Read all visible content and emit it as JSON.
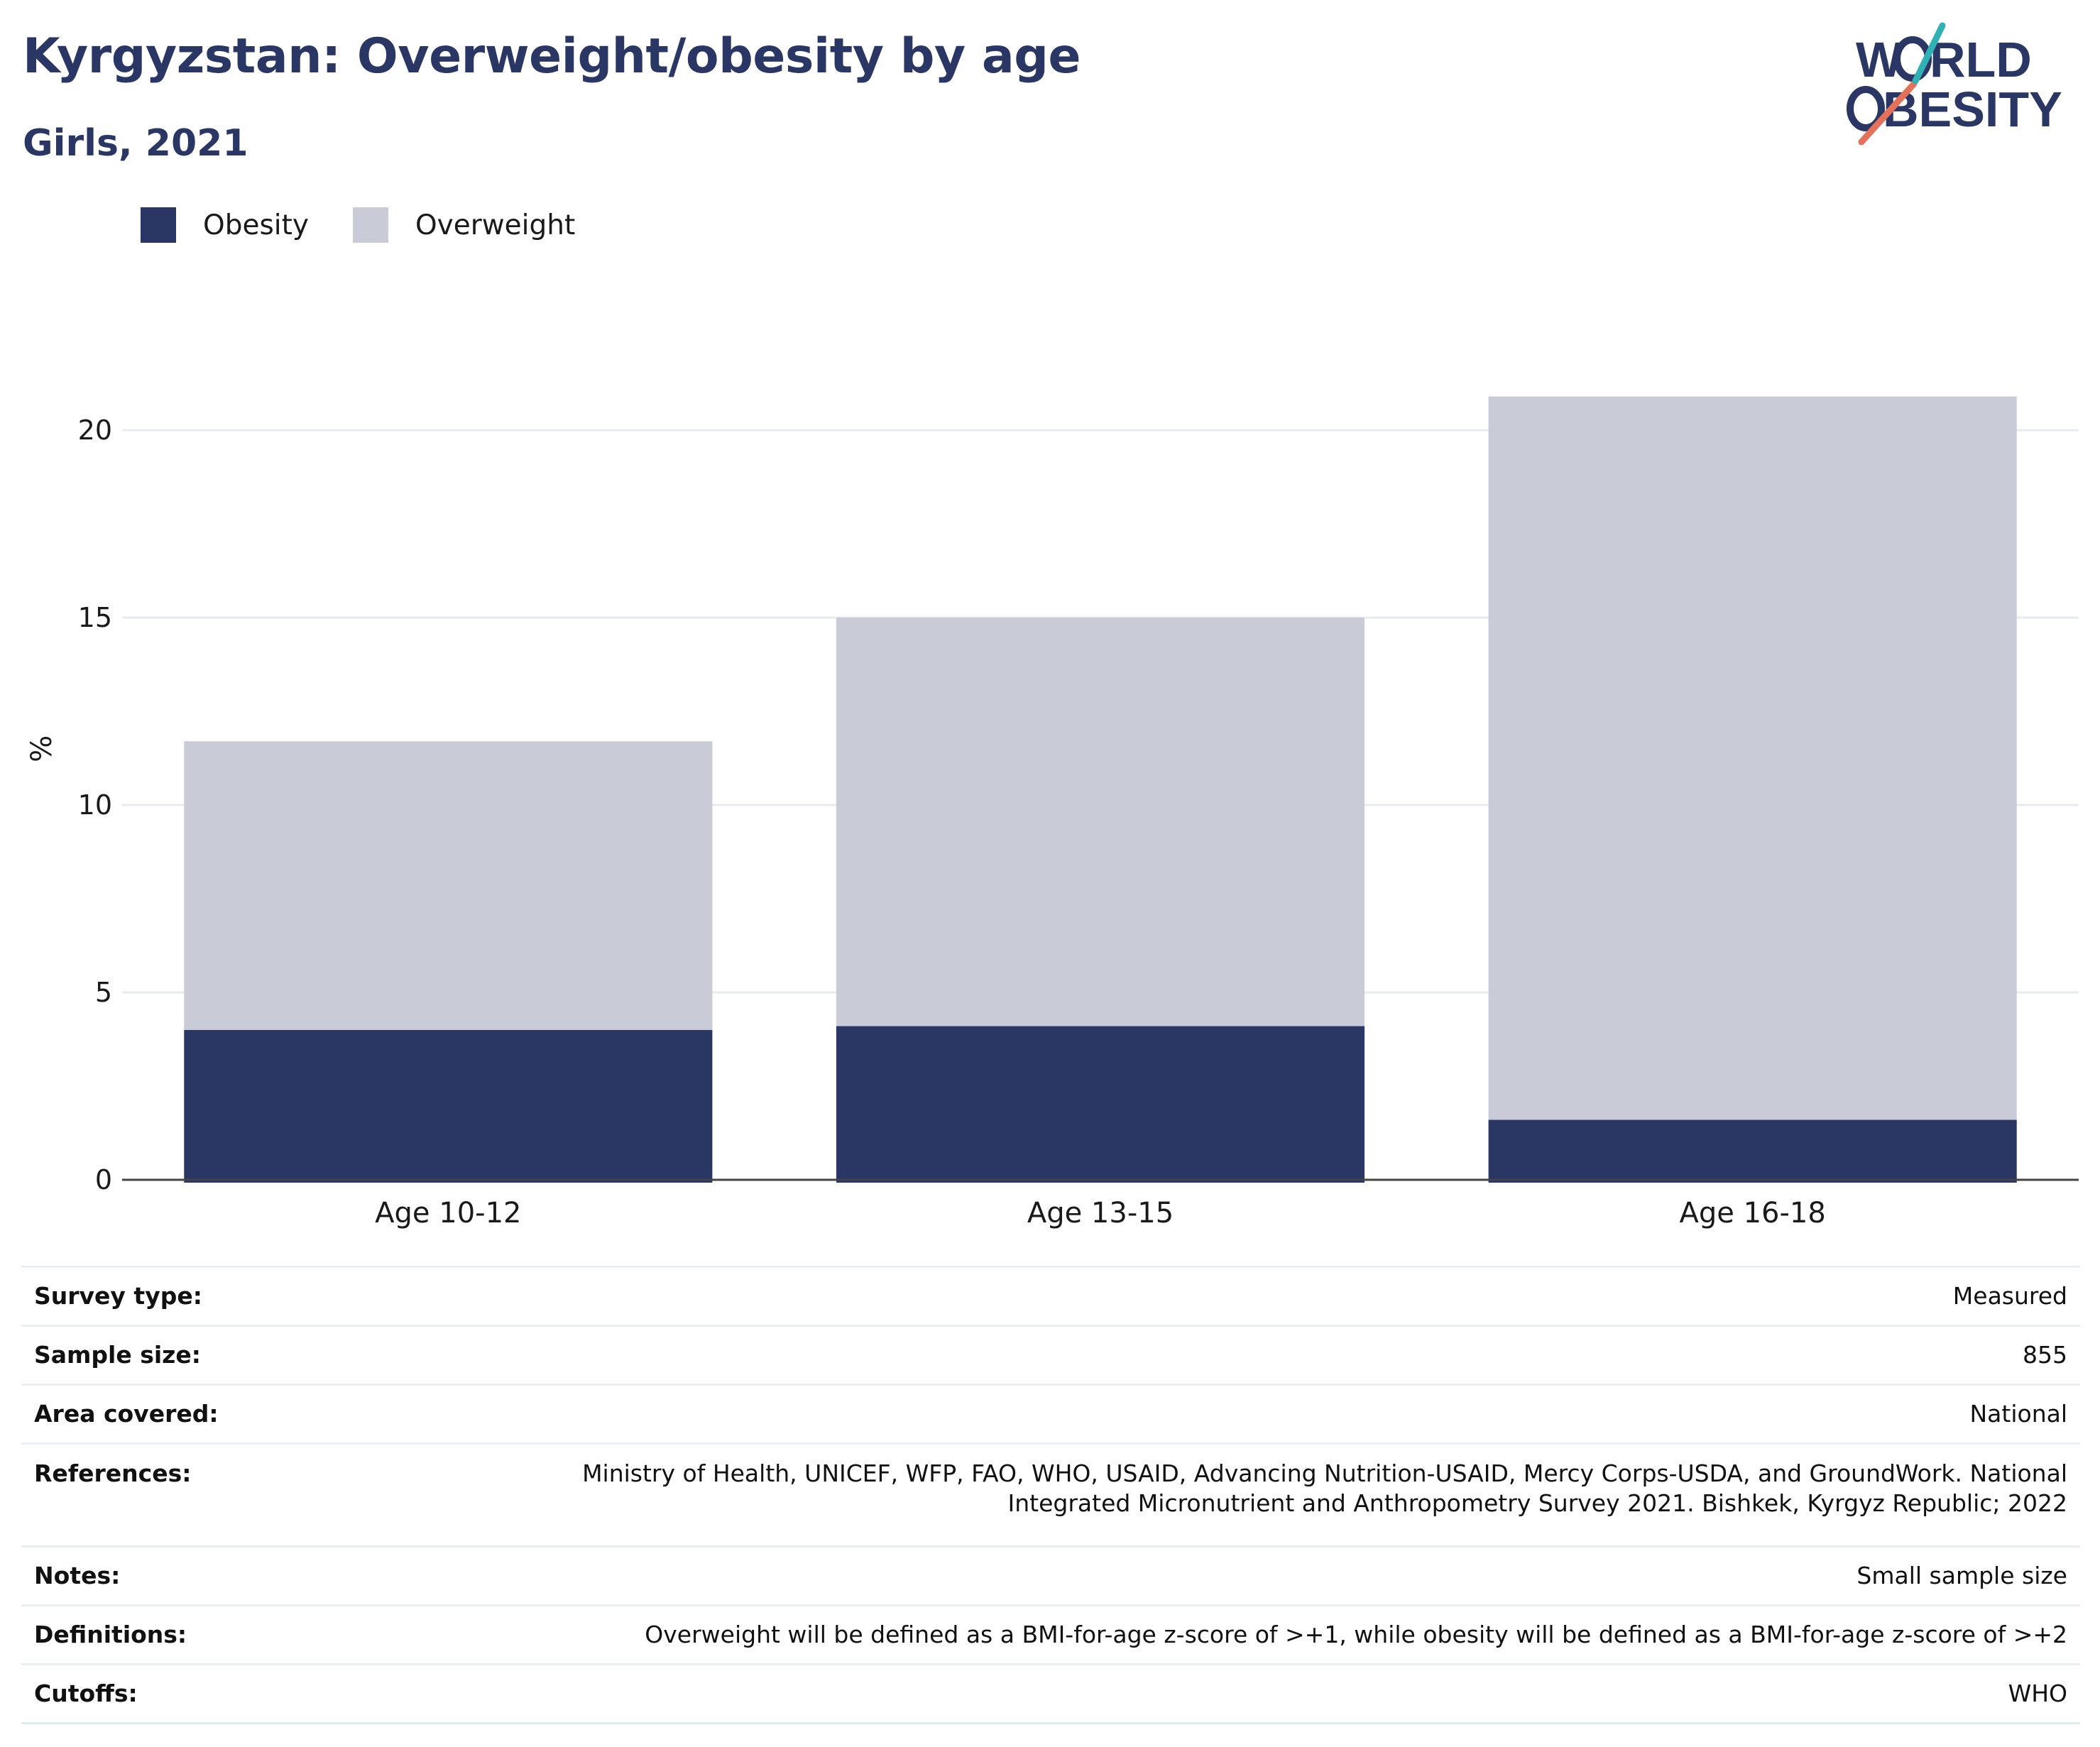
{
  "header": {
    "title": "Kyrgyzstan: Overweight/obesity by age",
    "subtitle": "Girls, 2021",
    "logo_text": "WORLD OBESITY"
  },
  "legend": [
    {
      "label": "Obesity",
      "color": "#2a3765"
    },
    {
      "label": "Overweight",
      "color": "#c9cbd6"
    }
  ],
  "chart_data": {
    "type": "bar",
    "stacked": true,
    "categories": [
      "Age 10-12",
      "Age 13-15",
      "Age 16-18"
    ],
    "series": [
      {
        "name": "Obesity",
        "color": "#2a3765",
        "values": [
          4.0,
          4.1,
          1.6
        ]
      },
      {
        "name": "Overweight",
        "color": "#c9cbd6",
        "values": [
          7.7,
          10.9,
          19.3
        ]
      }
    ],
    "ylabel": "%",
    "ylim": [
      0,
      22
    ],
    "yticks": [
      0,
      5,
      10,
      15,
      20
    ],
    "grid": true,
    "legend_position": "top-left"
  },
  "info": [
    {
      "key": "Survey type:",
      "value": "Measured"
    },
    {
      "key": "Sample size:",
      "value": "855"
    },
    {
      "key": "Area covered:",
      "value": "National"
    },
    {
      "key": "References:",
      "value_lines": [
        "Ministry of Health, UNICEF, WFP, FAO, WHO, USAID, Advancing Nutrition-USAID, Mercy Corps-USDA, and GroundWork. National",
        "Integrated Micronutrient and Anthropometry Survey 2021. Bishkek, Kyrgyz Republic; 2022"
      ]
    },
    {
      "key": "Notes:",
      "value": "Small sample size"
    },
    {
      "key": "Definitions:",
      "value": "Overweight will be defined as a BMI-for-age z-score of >+1, while obesity will be defined as a BMI-for-age z-score of >+2"
    },
    {
      "key": "Cutoffs:",
      "value": "WHO"
    }
  ]
}
